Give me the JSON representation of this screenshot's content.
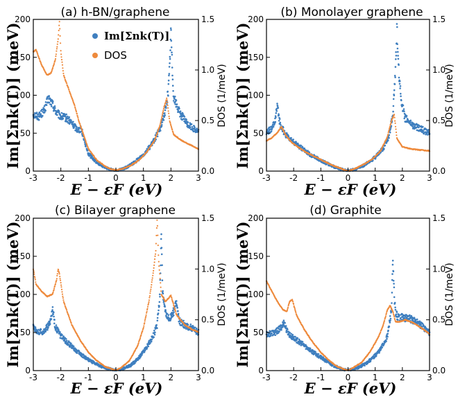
{
  "legend": {
    "items": [
      {
        "label": "Im[Σnk(T)]",
        "color": "#3f7fbf",
        "marker": "dot"
      },
      {
        "label": "DOS",
        "color": "#ee8a3c",
        "marker": "dot"
      }
    ],
    "placement": "top-right of panel (a)"
  },
  "colors": {
    "self_energy": "#3f7fbf",
    "dos": "#ee8a3c"
  },
  "chart_data": [
    {
      "type": "scatter",
      "title": "(a) h-BN/graphene",
      "xlabel": "E − εF (eV)",
      "ylabel": "Im[Σnk(T)] (meV)",
      "y2label": "DOS (1/meV)",
      "xlim": [
        -3,
        3
      ],
      "ylim": [
        0,
        200
      ],
      "y2lim": [
        0,
        1.5
      ],
      "xticks": [
        -3,
        -2,
        -1,
        0,
        1,
        2,
        3
      ],
      "yticks": [
        0,
        50,
        100,
        150,
        200
      ],
      "y2ticks": [
        "0.0",
        "0.5",
        "1.0",
        "1.5"
      ],
      "grid": false,
      "series": [
        {
          "name": "Im[Σnk(T)]",
          "axis": "left",
          "x": [
            -3.0,
            -2.8,
            -2.6,
            -2.45,
            -2.3,
            -2.2,
            -2.1,
            -2.0,
            -1.8,
            -1.6,
            -1.4,
            -1.25,
            -1.0,
            -0.7,
            -0.4,
            -0.1,
            0.0,
            0.1,
            0.4,
            0.7,
            1.0,
            1.3,
            1.6,
            1.8,
            1.9,
            1.95,
            2.0,
            2.05,
            2.1,
            2.3,
            2.6,
            3.0
          ],
          "y": [
            75,
            72,
            80,
            96,
            88,
            80,
            75,
            72,
            70,
            63,
            55,
            55,
            23,
            12,
            5,
            1,
            0,
            1,
            5,
            12,
            22,
            35,
            55,
            80,
            105,
            135,
            186,
            135,
            98,
            78,
            62,
            52
          ]
        },
        {
          "name": "DOS",
          "axis": "right",
          "x": [
            -3.0,
            -2.9,
            -2.7,
            -2.5,
            -2.35,
            -2.2,
            -2.1,
            -2.05,
            -2.0,
            -1.9,
            -1.7,
            -1.5,
            -1.35,
            -1.25,
            -1.0,
            -0.7,
            -0.4,
            -0.2,
            0.0,
            0.2,
            0.5,
            0.8,
            1.1,
            1.4,
            1.6,
            1.75,
            1.85,
            1.95,
            2.1,
            2.4,
            2.7,
            3.0
          ],
          "y": [
            1.18,
            1.2,
            1.05,
            0.95,
            0.97,
            1.1,
            1.3,
            1.48,
            1.18,
            0.95,
            0.8,
            0.65,
            0.5,
            0.42,
            0.22,
            0.11,
            0.05,
            0.02,
            0.01,
            0.02,
            0.05,
            0.1,
            0.18,
            0.3,
            0.45,
            0.63,
            0.72,
            0.5,
            0.36,
            0.3,
            0.26,
            0.22
          ]
        }
      ]
    },
    {
      "type": "scatter",
      "title": "(b) Monolayer graphene",
      "xlabel": "E − εF (eV)",
      "ylabel": "Im[Σnk(T)] (meV)",
      "y2label": "DOS (1/meV)",
      "xlim": [
        -3,
        3
      ],
      "ylim": [
        0,
        200
      ],
      "y2lim": [
        0,
        1.5
      ],
      "xticks": [
        -3,
        -2,
        -1,
        0,
        1,
        2,
        3
      ],
      "yticks": [
        0,
        50,
        100,
        150,
        200
      ],
      "y2ticks": [
        "0.0",
        "0.5",
        "1.0",
        "1.5"
      ],
      "grid": false,
      "series": [
        {
          "name": "Im[Σnk(T)]",
          "axis": "left",
          "x": [
            -3.0,
            -2.8,
            -2.68,
            -2.6,
            -2.5,
            -2.3,
            -2.0,
            -1.7,
            -1.4,
            -1.0,
            -0.6,
            -0.3,
            0.0,
            0.3,
            0.6,
            1.0,
            1.3,
            1.5,
            1.65,
            1.75,
            1.8,
            1.85,
            1.95,
            2.1,
            2.4,
            2.7,
            3.0
          ],
          "y": [
            52,
            55,
            68,
            85,
            62,
            48,
            38,
            30,
            22,
            14,
            7,
            3,
            0,
            3,
            8,
            18,
            30,
            45,
            75,
            135,
            188,
            140,
            95,
            70,
            60,
            55,
            50
          ]
        },
        {
          "name": "DOS",
          "axis": "right",
          "x": [
            -3.0,
            -2.8,
            -2.6,
            -2.45,
            -2.3,
            -2.1,
            -1.8,
            -1.5,
            -1.2,
            -0.9,
            -0.6,
            -0.3,
            0.0,
            0.3,
            0.6,
            0.9,
            1.2,
            1.45,
            1.6,
            1.7,
            1.8,
            2.0,
            2.3,
            2.6,
            3.0
          ],
          "y": [
            0.3,
            0.33,
            0.38,
            0.44,
            0.36,
            0.29,
            0.23,
            0.18,
            0.14,
            0.1,
            0.06,
            0.03,
            0.0,
            0.03,
            0.07,
            0.12,
            0.2,
            0.34,
            0.5,
            0.56,
            0.32,
            0.24,
            0.22,
            0.21,
            0.2
          ]
        }
      ]
    },
    {
      "type": "scatter",
      "title": "(c) Bilayer graphene",
      "xlabel": "E − εF (eV)",
      "ylabel": "Im[Σnk(T)] (meV)",
      "y2label": "DOS (1/meV)",
      "xlim": [
        -3,
        3
      ],
      "ylim": [
        0,
        200
      ],
      "y2lim": [
        0,
        1.5
      ],
      "xticks": [
        -3,
        -2,
        -1,
        0,
        1,
        2,
        3
      ],
      "yticks": [
        0,
        50,
        100,
        150,
        200
      ],
      "y2ticks": [
        "0.0",
        "0.5",
        "1.0",
        "1.5"
      ],
      "grid": false,
      "series": [
        {
          "name": "Im[Σnk(T)]",
          "axis": "left",
          "x": [
            -3.0,
            -2.8,
            -2.6,
            -2.4,
            -2.3,
            -2.2,
            -2.0,
            -1.7,
            -1.4,
            -1.1,
            -0.8,
            -0.5,
            -0.2,
            0.0,
            0.2,
            0.5,
            0.8,
            1.1,
            1.35,
            1.5,
            1.6,
            1.65,
            1.7,
            1.8,
            1.9,
            2.05,
            2.2,
            2.3,
            2.5,
            2.8,
            3.0
          ],
          "y": [
            58,
            50,
            52,
            62,
            80,
            58,
            45,
            35,
            25,
            17,
            10,
            5,
            2,
            0,
            2,
            6,
            15,
            30,
            45,
            60,
            100,
            182,
            100,
            75,
            68,
            72,
            90,
            65,
            60,
            55,
            50
          ]
        },
        {
          "name": "DOS",
          "axis": "right",
          "x": [
            -3.0,
            -2.9,
            -2.7,
            -2.5,
            -2.3,
            -2.15,
            -2.1,
            -2.05,
            -1.9,
            -1.6,
            -1.3,
            -1.0,
            -0.7,
            -0.4,
            -0.2,
            0.0,
            0.2,
            0.5,
            0.8,
            1.0,
            1.2,
            1.35,
            1.45,
            1.5,
            1.55,
            1.65,
            1.8,
            2.0,
            2.2,
            2.5,
            2.8,
            3.0
          ],
          "y": [
            1.0,
            0.85,
            0.78,
            0.73,
            0.75,
            0.9,
            1.0,
            0.95,
            0.68,
            0.45,
            0.3,
            0.18,
            0.1,
            0.04,
            0.02,
            0.0,
            0.03,
            0.1,
            0.25,
            0.42,
            0.68,
            0.95,
            1.18,
            1.5,
            1.1,
            0.75,
            0.68,
            0.74,
            0.55,
            0.45,
            0.4,
            0.38
          ]
        }
      ]
    },
    {
      "type": "scatter",
      "title": "(d) Graphite",
      "xlabel": "E − εF (eV)",
      "ylabel": "Im[Σnk(T)] (meV)",
      "y2label": "DOS (1/meV)",
      "xlim": [
        -3,
        3
      ],
      "ylim": [
        0,
        200
      ],
      "y2lim": [
        0,
        1.5
      ],
      "xticks": [
        -3,
        -2,
        -1,
        0,
        1,
        2,
        3
      ],
      "yticks": [
        0,
        50,
        100,
        150,
        200
      ],
      "y2ticks": [
        "0.0",
        "0.5",
        "1.0",
        "1.5"
      ],
      "grid": false,
      "series": [
        {
          "name": "Im[Σnk(T)]",
          "axis": "left",
          "x": [
            -3.0,
            -2.7,
            -2.5,
            -2.35,
            -2.25,
            -2.1,
            -1.8,
            -1.5,
            -1.2,
            -0.9,
            -0.6,
            -0.3,
            0.0,
            0.3,
            0.6,
            0.9,
            1.2,
            1.45,
            1.6,
            1.65,
            1.7,
            1.75,
            1.85,
            2.0,
            2.3,
            2.6,
            3.0
          ],
          "y": [
            48,
            50,
            55,
            63,
            52,
            45,
            38,
            30,
            22,
            15,
            8,
            3,
            0,
            3,
            8,
            16,
            28,
            45,
            80,
            140,
            100,
            75,
            70,
            70,
            68,
            62,
            50
          ]
        },
        {
          "name": "DOS",
          "axis": "right",
          "x": [
            -3.0,
            -2.8,
            -2.6,
            -2.4,
            -2.25,
            -2.15,
            -2.05,
            -1.9,
            -1.6,
            -1.3,
            -1.0,
            -0.7,
            -0.4,
            -0.2,
            0.0,
            0.2,
            0.5,
            0.8,
            1.1,
            1.3,
            1.45,
            1.55,
            1.65,
            1.75,
            1.9,
            2.1,
            2.4,
            2.7,
            3.0
          ],
          "y": [
            0.88,
            0.78,
            0.68,
            0.6,
            0.58,
            0.68,
            0.7,
            0.55,
            0.4,
            0.28,
            0.18,
            0.1,
            0.04,
            0.02,
            0.0,
            0.03,
            0.08,
            0.18,
            0.32,
            0.45,
            0.6,
            0.64,
            0.58,
            0.48,
            0.48,
            0.5,
            0.47,
            0.42,
            0.36
          ]
        }
      ]
    }
  ]
}
